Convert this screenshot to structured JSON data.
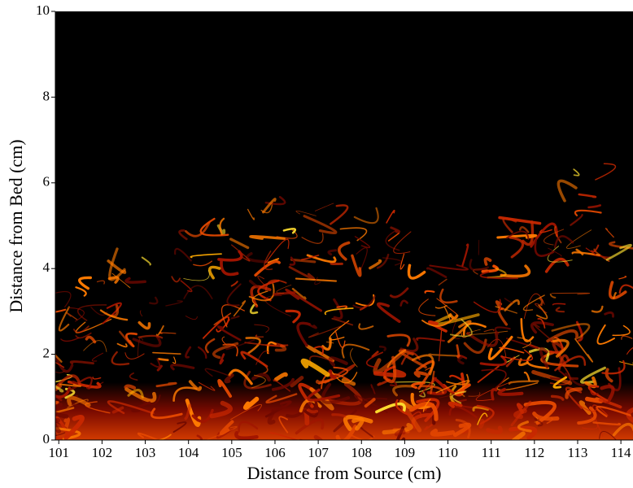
{
  "chart_data": {
    "type": "image",
    "xlabel": "Distance from Source (cm)",
    "ylabel": "Distance from Bed (cm)",
    "xlim": [
      100.92,
      114.28
    ],
    "ylim": [
      0,
      10
    ],
    "xticks": [
      101,
      102,
      103,
      104,
      105,
      106,
      107,
      108,
      109,
      110,
      111,
      112,
      113,
      114
    ],
    "yticks": [
      0,
      2,
      4,
      6,
      8,
      10
    ]
  }
}
